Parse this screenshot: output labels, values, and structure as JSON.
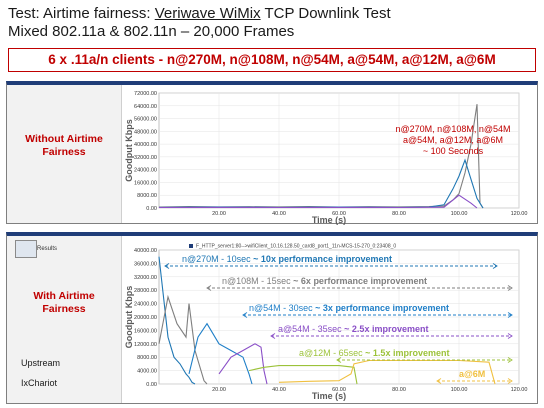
{
  "header": {
    "line1_prefix": "Test: Airtime fairness: ",
    "vendor": "Veriwave WiMix",
    "line1_suffix": " TCP Downlink Test",
    "line2": "Mixed 802.11a & 802.11n – 20,000 Frames"
  },
  "banner": "6 x .11a/n clients - n@270M, n@108M, n@54M, a@54M, a@12M, a@6M",
  "panel1": {
    "label_lines": [
      "Without Airtime",
      "Fairness"
    ]
  },
  "panel2": {
    "label_lines": [
      "With Airtime",
      "Fairness"
    ],
    "side_notes": [
      "Upstream",
      "IxChariot"
    ],
    "results_label": "Results"
  },
  "colors": {
    "brand_red": "#c00000",
    "panel_border": "#1f3d78",
    "n270": "#1f77b4",
    "n108": "#7f7f7f",
    "n54": "#1f7fc8",
    "a54": "#8a4fc7",
    "a12": "#9cc23a",
    "a6": "#f0c040"
  },
  "chart_data": [
    {
      "type": "line",
      "ylabel": "Goodput Kbps",
      "xlabel": "Time (s)",
      "xlim": [
        0,
        120
      ],
      "ylim": [
        0,
        72000
      ],
      "xticks": [
        "20.00",
        "40.00",
        "60.00",
        "80.00",
        "100.00",
        "120.00"
      ],
      "yticks": [
        "0.00",
        "8000.00",
        "16000.00",
        "24000.00",
        "32000.00",
        "40000.00",
        "48000.00",
        "56000.00",
        "64000.00",
        "72000.00"
      ],
      "annotation_lines": [
        "n@270M, n@108M, n@54M",
        "a@54M, a@12M, a@6M",
        "~ 100 Seconds"
      ],
      "grid": true,
      "series": [
        {
          "color": "#7f7f7f",
          "x": [
            0,
            10,
            20,
            30,
            40,
            50,
            60,
            70,
            80,
            90,
            95,
            98,
            100,
            102,
            104,
            106,
            107,
            108
          ],
          "y": [
            600,
            900,
            700,
            800,
            700,
            900,
            600,
            800,
            700,
            900,
            1200,
            5000,
            9000,
            22000,
            40000,
            65000,
            3000,
            0
          ]
        },
        {
          "color": "#1f77b4",
          "x": [
            0,
            10,
            20,
            30,
            40,
            50,
            60,
            70,
            80,
            90,
            95,
            98,
            100,
            102,
            104,
            106,
            108
          ],
          "y": [
            400,
            500,
            600,
            500,
            400,
            500,
            600,
            500,
            400,
            600,
            2000,
            12000,
            20000,
            30000,
            18000,
            6000,
            0
          ]
        },
        {
          "color": "#8a4fc7",
          "x": [
            0,
            20,
            40,
            60,
            80,
            95,
            100,
            104,
            106
          ],
          "y": [
            300,
            400,
            300,
            400,
            300,
            500,
            8000,
            3000,
            0
          ]
        }
      ]
    },
    {
      "type": "line",
      "ylabel": "Goodput Kbps",
      "xlabel": "Time (s)",
      "xlim": [
        0,
        120
      ],
      "ylim": [
        0,
        40000
      ],
      "xticks": [
        "20.00",
        "40.00",
        "60.00",
        "80.00",
        "100.00",
        "120.00"
      ],
      "yticks": [
        "0.00",
        "4000.00",
        "8000.00",
        "12000.00",
        "16000.00",
        "20000.00",
        "24000.00",
        "28000.00",
        "32000.00",
        "36000.00",
        "40000.00"
      ],
      "legend": "F_HTTP_server1:80-->wifiClient_10.16.128.50_card8_port1_11n-MCS-15-270_0:23408_0",
      "grid": true,
      "series": [
        {
          "color": "#1f77b4",
          "x": [
            0,
            1,
            2,
            3,
            5,
            7,
            9,
            10,
            11,
            12
          ],
          "y": [
            38000,
            30000,
            22000,
            14000,
            8000,
            6000,
            3000,
            2000,
            500,
            0
          ]
        },
        {
          "color": "#7f7f7f",
          "x": [
            0,
            3,
            6,
            9,
            10,
            12,
            14,
            15,
            16
          ],
          "y": [
            12000,
            26000,
            18000,
            14000,
            24000,
            10000,
            4000,
            1000,
            0
          ]
        },
        {
          "color": "#1f7fc8",
          "x": [
            10,
            13,
            16,
            20,
            24,
            28,
            30,
            31
          ],
          "y": [
            3000,
            14000,
            18000,
            12000,
            10000,
            8000,
            3000,
            0
          ]
        },
        {
          "color": "#8a4fc7",
          "x": [
            20,
            24,
            28,
            32,
            34,
            35,
            36
          ],
          "y": [
            3000,
            8000,
            10000,
            12000,
            11000,
            4000,
            0
          ]
        },
        {
          "color": "#9cc23a",
          "x": [
            30,
            35,
            40,
            45,
            50,
            55,
            60,
            65,
            66
          ],
          "y": [
            4000,
            5000,
            5500,
            5500,
            5500,
            5500,
            5500,
            5000,
            0
          ]
        },
        {
          "color": "#f0c040",
          "x": [
            40,
            50,
            60,
            64,
            65,
            70,
            80,
            90,
            100,
            110,
            112
          ],
          "y": [
            500,
            800,
            1000,
            3000,
            6000,
            7000,
            7000,
            7000,
            7000,
            6500,
            0
          ]
        }
      ],
      "annotations": [
        {
          "prefix": "n@270M - 10sec ",
          "emph": "~ 10x performance improvement",
          "color": "#1f77b4"
        },
        {
          "prefix": "n@108M - 15sec ",
          "emph": "~ 6x performance improvement",
          "color": "#7f7f7f"
        },
        {
          "prefix": "n@54M - 30sec ",
          "emph": "~ 3x performance improvement",
          "color": "#1f7fc8"
        },
        {
          "prefix": "a@54M - 35sec ",
          "emph": "~ 2.5x improvement",
          "color": "#8a4fc7"
        },
        {
          "prefix": "a@12M - 65sec ",
          "emph": "~ 1.5x improvement",
          "color": "#9cc23a"
        },
        {
          "prefix": "",
          "emph": "a@6M",
          "color": "#f0c040"
        }
      ]
    }
  ]
}
